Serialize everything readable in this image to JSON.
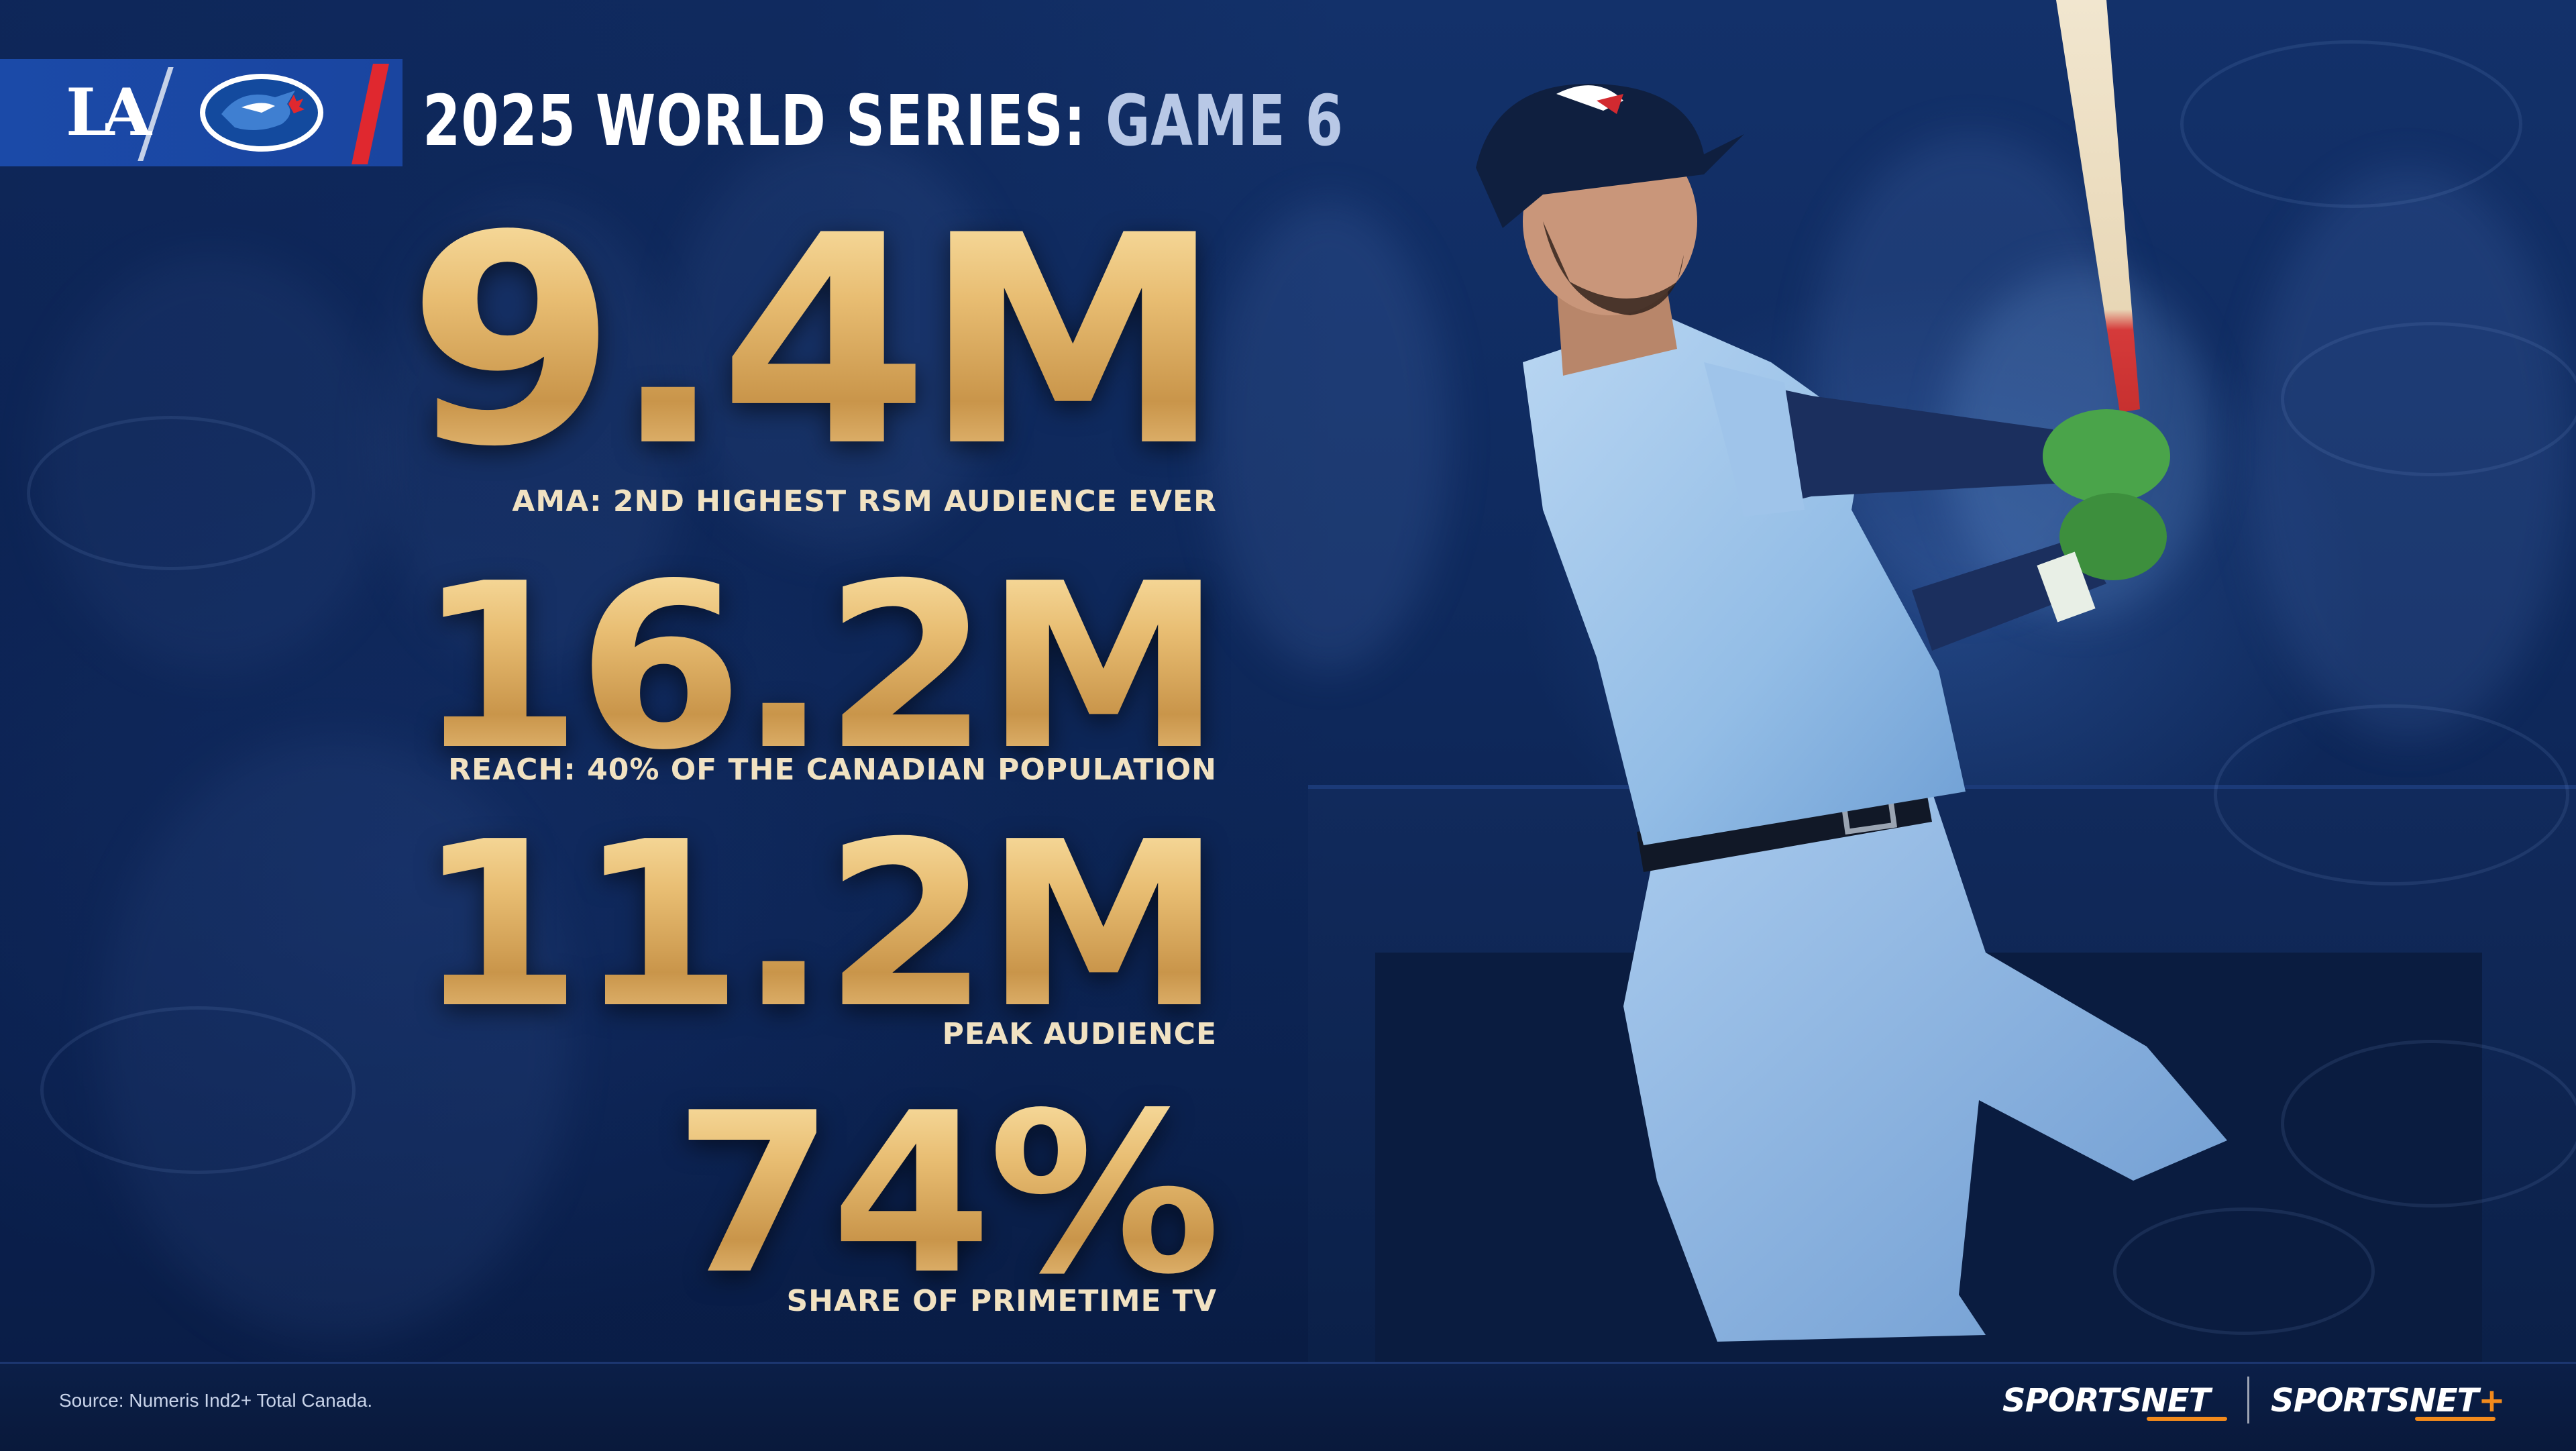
{
  "header": {
    "title_main": "2025 WORLD SERIES:",
    "title_game": "GAME 6",
    "team_left_logo_text": "LA",
    "team_left_logo": "dodgers-la-logo",
    "team_right_logo": "blue-jays-logo"
  },
  "stats": [
    {
      "value": "9.4M",
      "label": "AMA: 2ND HIGHEST RSM AUDIENCE EVER"
    },
    {
      "value": "16.2M",
      "label": "REACH: 40% OF THE CANADIAN POPULATION"
    },
    {
      "value": "11.2M",
      "label": "PEAK AUDIENCE"
    },
    {
      "value": "74%",
      "label": "SHARE OF PRIMETIME TV"
    }
  ],
  "footer": {
    "source": "Source: Numeris Ind2+ Total Canada.",
    "brand_1": "SPORTSNET",
    "brand_2": "SPORTSNET",
    "brand_2_suffix": "+"
  },
  "colors": {
    "gold": "#e0b56a",
    "navy": "#0f2a5e",
    "brand_blue": "#1b4aa8",
    "accent_red": "#e0282f",
    "jersey": "#9ec4ea",
    "sportsnet_orange": "#f28a1c"
  }
}
